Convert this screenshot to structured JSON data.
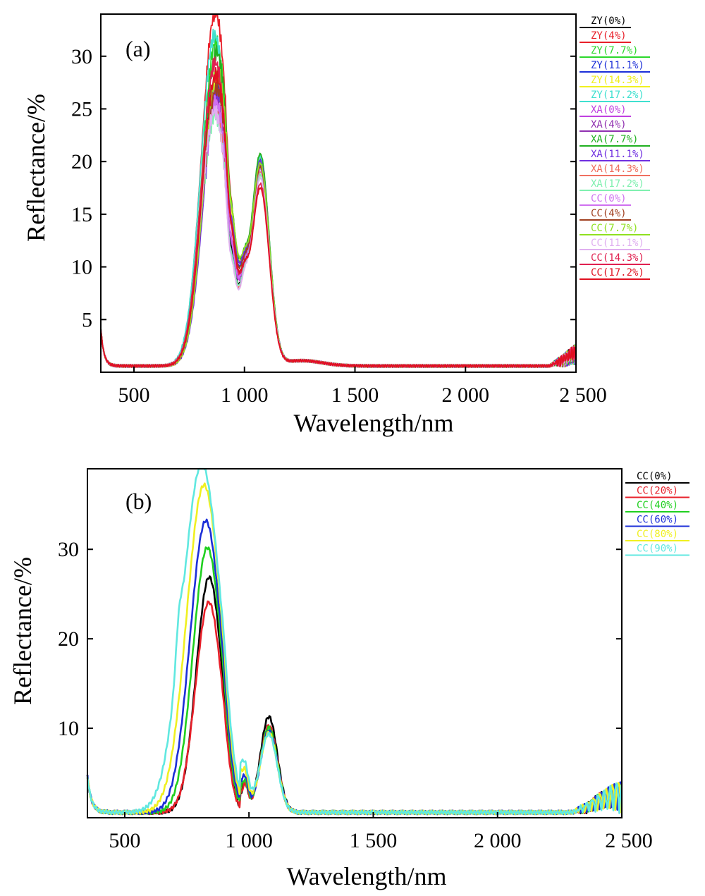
{
  "chart_data": [
    {
      "type": "line",
      "panel_label": "(a)",
      "xlabel": "Wavelength/nm",
      "ylabel": "Reflectance/%",
      "xlim": [
        350,
        2500
      ],
      "ylim": [
        0,
        34
      ],
      "x_ticks": [
        500,
        1000,
        1500,
        2000,
        2500
      ],
      "x_tick_labels": [
        "500",
        "1 000",
        "1 500",
        "2 000",
        "2 500"
      ],
      "y_ticks": [
        5,
        10,
        15,
        20,
        25,
        30
      ],
      "y_tick_labels": [
        "5",
        "10",
        "15",
        "20",
        "25",
        "30"
      ],
      "grid": false,
      "legend_position": "right",
      "series": [
        {
          "name": "ZY(0%)",
          "color": "#000000",
          "peak": 26.2,
          "second_peak": 19.8
        },
        {
          "name": "ZY(4%)",
          "color": "#e8202a",
          "peak": 33.6,
          "second_peak": 20.0
        },
        {
          "name": "ZY(7.7%)",
          "color": "#2bd82b",
          "peak": 30.8,
          "second_peak": 20.3
        },
        {
          "name": "ZY(11.1%)",
          "color": "#1c2fd8",
          "peak": 26.8,
          "second_peak": 19.9
        },
        {
          "name": "ZY(14.3%)",
          "color": "#f0f020",
          "peak": 27.2,
          "second_peak": 20.1
        },
        {
          "name": "ZY(17.2%)",
          "color": "#40e0d0",
          "peak": 31.4,
          "second_peak": 20.2
        },
        {
          "name": "XA(0%)",
          "color": "#c040e0",
          "peak": 25.8,
          "second_peak": 19.6
        },
        {
          "name": "XA(4%)",
          "color": "#9030b0",
          "peak": 25.2,
          "second_peak": 19.4
        },
        {
          "name": "XA(7.7%)",
          "color": "#20b020",
          "peak": 29.8,
          "second_peak": 20.4
        },
        {
          "name": "XA(11.1%)",
          "color": "#7030e0",
          "peak": 26.0,
          "second_peak": 19.7
        },
        {
          "name": "XA(14.3%)",
          "color": "#f07060",
          "peak": 24.6,
          "second_peak": 18.8
        },
        {
          "name": "XA(17.2%)",
          "color": "#80f0b0",
          "peak": 23.8,
          "second_peak": 18.5
        },
        {
          "name": "CC(0%)",
          "color": "#d070f0",
          "peak": 25.0,
          "second_peak": 19.0
        },
        {
          "name": "CC(4%)",
          "color": "#a04020",
          "peak": 26.4,
          "second_peak": 19.2
        },
        {
          "name": "CC(7.7%)",
          "color": "#90e020",
          "peak": 28.0,
          "second_peak": 19.5
        },
        {
          "name": "CC(11.1%)",
          "color": "#e0b0f0",
          "peak": 24.2,
          "second_peak": 18.2
        },
        {
          "name": "CC(14.3%)",
          "color": "#e02050",
          "peak": 28.8,
          "second_peak": 17.6
        },
        {
          "name": "CC(17.2%)",
          "color": "#e01020",
          "peak": 27.6,
          "second_peak": 17.2
        }
      ]
    },
    {
      "type": "line",
      "panel_label": "(b)",
      "xlabel": "Wavelength/nm",
      "ylabel": "Reflectance/%",
      "xlim": [
        350,
        2500
      ],
      "ylim": [
        0,
        39
      ],
      "x_ticks": [
        500,
        1000,
        1500,
        2000,
        2500
      ],
      "x_tick_labels": [
        "500",
        "1 000",
        "1 500",
        "2 000",
        "2 500"
      ],
      "y_ticks": [
        10,
        20,
        30
      ],
      "y_tick_labels": [
        "10",
        "20",
        "30"
      ],
      "grid": false,
      "legend_position": "right",
      "series": [
        {
          "name": "CC(0%)",
          "color": "#000000",
          "shift": 0,
          "peak": 26.3,
          "second_peak": 11.2
        },
        {
          "name": "CC(20%)",
          "color": "#e8202a",
          "shift": 5,
          "peak": 23.5,
          "second_peak": 10.2
        },
        {
          "name": "CC(40%)",
          "color": "#20d020",
          "shift": 25,
          "peak": 29.6,
          "second_peak": 10.0
        },
        {
          "name": "CC(60%)",
          "color": "#1c2fd8",
          "shift": 45,
          "peak": 32.6,
          "second_peak": 9.6
        },
        {
          "name": "CC(80%)",
          "color": "#f0f020",
          "shift": 70,
          "peak": 36.6,
          "second_peak": 9.4
        },
        {
          "name": "CC(90%)",
          "color": "#60e8e0",
          "shift": 100,
          "peak": 38.9,
          "second_peak": 9.2
        }
      ]
    }
  ]
}
